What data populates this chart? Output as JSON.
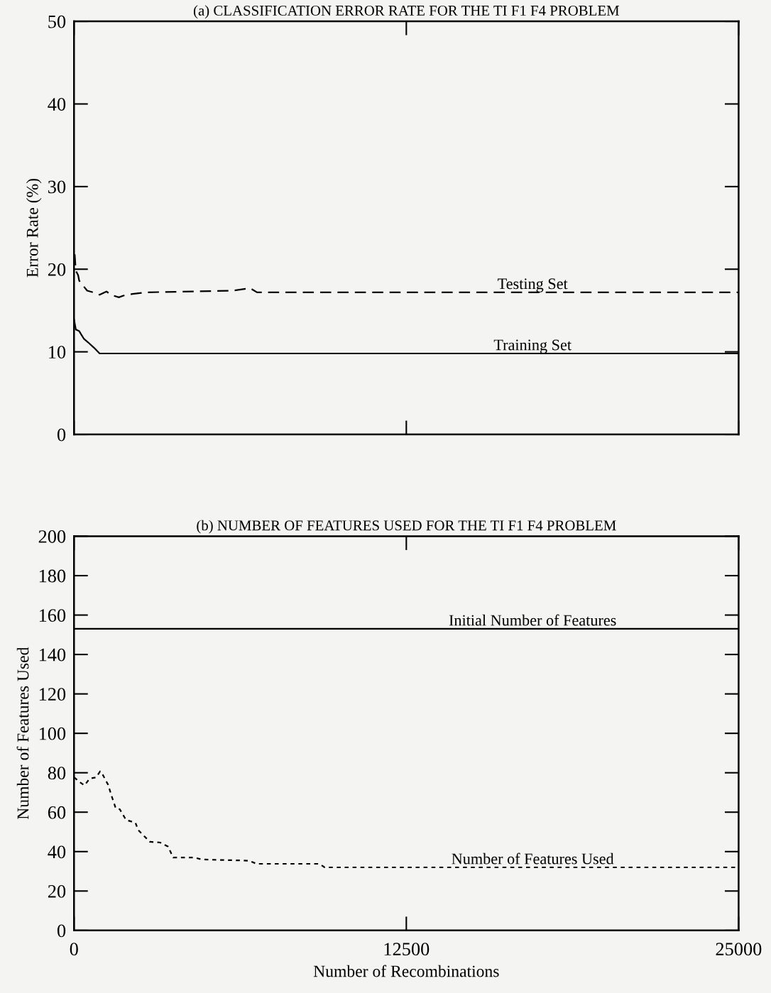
{
  "chart_data": [
    {
      "type": "line",
      "title": "(a) CLASSIFICATION ERROR RATE FOR THE TI F1 F4 PROBLEM",
      "ylabel": "Error Rate (%)",
      "xlim": [
        0,
        25000
      ],
      "xticks": [
        0,
        12500,
        25000
      ],
      "ylim": [
        0,
        50
      ],
      "yticks": [
        0,
        10,
        20,
        30,
        40,
        50
      ],
      "tick_labels": "y",
      "grid": false,
      "legend": false,
      "series": [
        {
          "name": "Testing Set",
          "color": "#000000",
          "line_style": "dashed",
          "x": [
            26,
            68,
            153,
            196,
            494,
            835,
            963,
            1219,
            1390,
            1687,
            1858,
            2198,
            2710,
            5948,
            6628,
            6884,
            12423,
            25000
          ],
          "values": [
            21.8,
            19.8,
            19.3,
            18.6,
            17.4,
            17.1,
            16.9,
            17.3,
            16.9,
            16.6,
            16.8,
            17.0,
            17.2,
            17.4,
            17.7,
            17.2,
            17.2,
            17.2
          ]
        },
        {
          "name": "Training Set",
          "color": "#000000",
          "line_style": "solid",
          "x": [
            0,
            68,
            196,
            366,
            579,
            750,
            963,
            25000
          ],
          "values": [
            13.9,
            12.7,
            12.5,
            11.6,
            11.0,
            10.5,
            9.8,
            9.8
          ]
        }
      ]
    },
    {
      "type": "line",
      "title": "(b) NUMBER OF FEATURES USED FOR THE TI F1 F4 PROBLEM",
      "xlabel": "Number of Recombinations",
      "ylabel": "Number of Features Used",
      "xlim": [
        0,
        25000
      ],
      "xticks": [
        0,
        12500,
        25000
      ],
      "ylim": [
        0,
        200
      ],
      "yticks": [
        0,
        20,
        40,
        60,
        80,
        100,
        120,
        140,
        160,
        180,
        200
      ],
      "grid": false,
      "legend": false,
      "series": [
        {
          "name": "Initial Number of Features",
          "color": "#000000",
          "line_style": "solid",
          "x": [
            0,
            25000
          ],
          "values": [
            153,
            153
          ]
        },
        {
          "name": "Number of Features Used",
          "color": "#000000",
          "line_style": "dotted",
          "x": [
            0,
            245,
            390,
            590,
            835,
            980,
            1080,
            1280,
            1420,
            1570,
            1720,
            1960,
            2310,
            2410,
            2850,
            3240,
            3540,
            3730,
            4520,
            4810,
            6580,
            6870,
            9230,
            9430,
            25000
          ],
          "values": [
            77.7,
            75,
            73.6,
            77,
            77.7,
            80.7,
            79,
            74,
            68,
            62,
            61.5,
            56,
            54.7,
            51,
            45,
            44.6,
            42.5,
            37,
            37,
            36,
            35.4,
            33.8,
            33.8,
            32,
            32
          ]
        }
      ]
    }
  ]
}
